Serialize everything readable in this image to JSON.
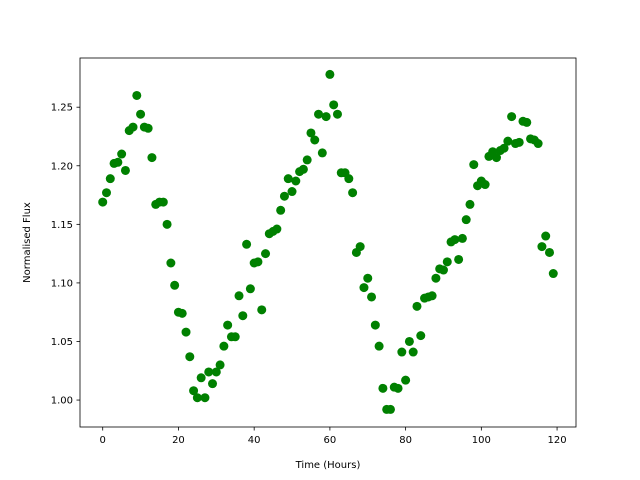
{
  "chart_data": {
    "type": "scatter",
    "title": "",
    "xlabel": "Time (Hours)",
    "ylabel": "Normalised Flux",
    "xlim": [
      -6,
      125
    ],
    "ylim": [
      0.977,
      1.292
    ],
    "xticks": [
      0,
      20,
      40,
      60,
      80,
      100,
      120
    ],
    "xtick_labels": [
      "0",
      "20",
      "40",
      "60",
      "80",
      "100",
      "120"
    ],
    "yticks": [
      1.0,
      1.05,
      1.1,
      1.15,
      1.2,
      1.25
    ],
    "ytick_labels": [
      "1.00",
      "1.05",
      "1.10",
      "1.15",
      "1.20",
      "1.25"
    ],
    "grid": false,
    "marker_color": "#008000",
    "series": [
      {
        "x": [
          0,
          1,
          2,
          3,
          4,
          5,
          6,
          7,
          8,
          9,
          10,
          11,
          12,
          13,
          14,
          15,
          16,
          17,
          18,
          19,
          20,
          21,
          22,
          23,
          24,
          25,
          26,
          27,
          28,
          29,
          30,
          31,
          32,
          33,
          34,
          35,
          36,
          37,
          38,
          39,
          40,
          41,
          42,
          43,
          44,
          45,
          46,
          47,
          48,
          49,
          50,
          51,
          52,
          53,
          54,
          55,
          56,
          57,
          58,
          59,
          60,
          61,
          62,
          63,
          64,
          65,
          66,
          67,
          68,
          69,
          70,
          71,
          72,
          73,
          74,
          75,
          76,
          77,
          78,
          79,
          80,
          81,
          82,
          83,
          84,
          85,
          86,
          87,
          88,
          89,
          90,
          91,
          92,
          93,
          94,
          95,
          96,
          97,
          98,
          99,
          100,
          101,
          102,
          103,
          104,
          105,
          106,
          107,
          108,
          109,
          110,
          111,
          112,
          113,
          114,
          115,
          116,
          117,
          118,
          119
        ],
        "y": [
          1.169,
          1.177,
          1.189,
          1.202,
          1.203,
          1.21,
          1.196,
          1.23,
          1.233,
          1.26,
          1.244,
          1.233,
          1.232,
          1.207,
          1.167,
          1.169,
          1.169,
          1.15,
          1.117,
          1.098,
          1.075,
          1.074,
          1.058,
          1.037,
          1.008,
          1.002,
          1.019,
          1.002,
          1.024,
          1.014,
          1.024,
          1.03,
          1.046,
          1.064,
          1.054,
          1.054,
          1.089,
          1.072,
          1.133,
          1.095,
          1.117,
          1.118,
          1.077,
          1.125,
          1.142,
          1.144,
          1.146,
          1.162,
          1.174,
          1.189,
          1.178,
          1.187,
          1.195,
          1.197,
          1.205,
          1.228,
          1.222,
          1.244,
          1.211,
          1.242,
          1.278,
          1.252,
          1.244,
          1.194,
          1.194,
          1.189,
          1.177,
          1.126,
          1.131,
          1.096,
          1.104,
          1.088,
          1.064,
          1.046,
          1.01,
          0.992,
          0.992,
          1.011,
          1.01,
          1.041,
          1.017,
          1.05,
          1.041,
          1.08,
          1.055,
          1.087,
          1.088,
          1.089,
          1.104,
          1.112,
          1.111,
          1.118,
          1.135,
          1.137,
          1.12,
          1.138,
          1.154,
          1.167,
          1.201,
          1.183,
          1.187,
          1.184,
          1.208,
          1.212,
          1.207,
          1.213,
          1.215,
          1.221,
          1.242,
          1.219,
          1.22,
          1.238,
          1.237,
          1.223,
          1.222,
          1.219,
          1.131,
          1.14,
          1.126,
          1.108
        ]
      }
    ]
  }
}
